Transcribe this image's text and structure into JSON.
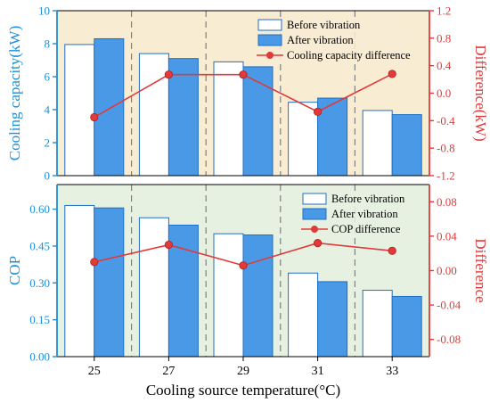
{
  "colors": {
    "left_axis": "#1f8fd6",
    "right_axis": "#e03a3a",
    "bar_after": "#4a99e6",
    "bar_before": "#ffffff",
    "bar_edge": "#1f6fc4",
    "top_bg": "#f8ecd3",
    "bottom_bg": "#e6f1e2",
    "line": "#e03a3a",
    "dashed": "#808080"
  },
  "chart_data": [
    {
      "type": "bar",
      "categories": [
        "25",
        "27",
        "29",
        "31",
        "33"
      ],
      "series": [
        {
          "name": "Before vibration",
          "values": [
            7.95,
            7.4,
            6.9,
            4.45,
            3.95
          ]
        },
        {
          "name": "After vibration",
          "values": [
            8.3,
            7.1,
            6.6,
            4.7,
            3.7
          ]
        }
      ],
      "line_series": {
        "name": "Cooling capacity difference",
        "values": [
          -0.35,
          0.27,
          0.27,
          -0.27,
          0.28
        ]
      },
      "ylabel": "Cooling capacity(kW)",
      "ylim": [
        0,
        10
      ],
      "yticks": [
        "0",
        "2",
        "4",
        "6",
        "8",
        "10"
      ],
      "y2label": "Difference(kW)",
      "y2lim": [
        -1.2,
        1.2
      ],
      "y2ticks": [
        "-1.2",
        "-0.8",
        "-0.4",
        "0.0",
        "0.4",
        "0.8",
        "1.2"
      ],
      "legend_position": "top-right"
    },
    {
      "type": "bar",
      "categories": [
        "25",
        "27",
        "29",
        "31",
        "33"
      ],
      "series": [
        {
          "name": "Before vibration",
          "values": [
            0.615,
            0.565,
            0.5,
            0.34,
            0.27
          ]
        },
        {
          "name": "After vibration",
          "values": [
            0.605,
            0.535,
            0.495,
            0.305,
            0.245
          ]
        }
      ],
      "line_series": {
        "name": "COP difference",
        "values": [
          0.01,
          0.03,
          0.006,
          0.032,
          0.023
        ]
      },
      "ylabel": "COP",
      "ylim": [
        0,
        0.7
      ],
      "yticks": [
        "0.00",
        "0.15",
        "0.30",
        "0.45",
        "0.60"
      ],
      "y2label": "Difference",
      "y2lim": [
        -0.1,
        0.1
      ],
      "y2ticks": [
        "-0.08",
        "-0.04",
        "0.00",
        "0.04",
        "0.08"
      ],
      "xlabel": "Cooling source temperature(°C)",
      "xticks": [
        "25",
        "27",
        "29",
        "31",
        "33"
      ],
      "legend_position": "top-right"
    }
  ]
}
